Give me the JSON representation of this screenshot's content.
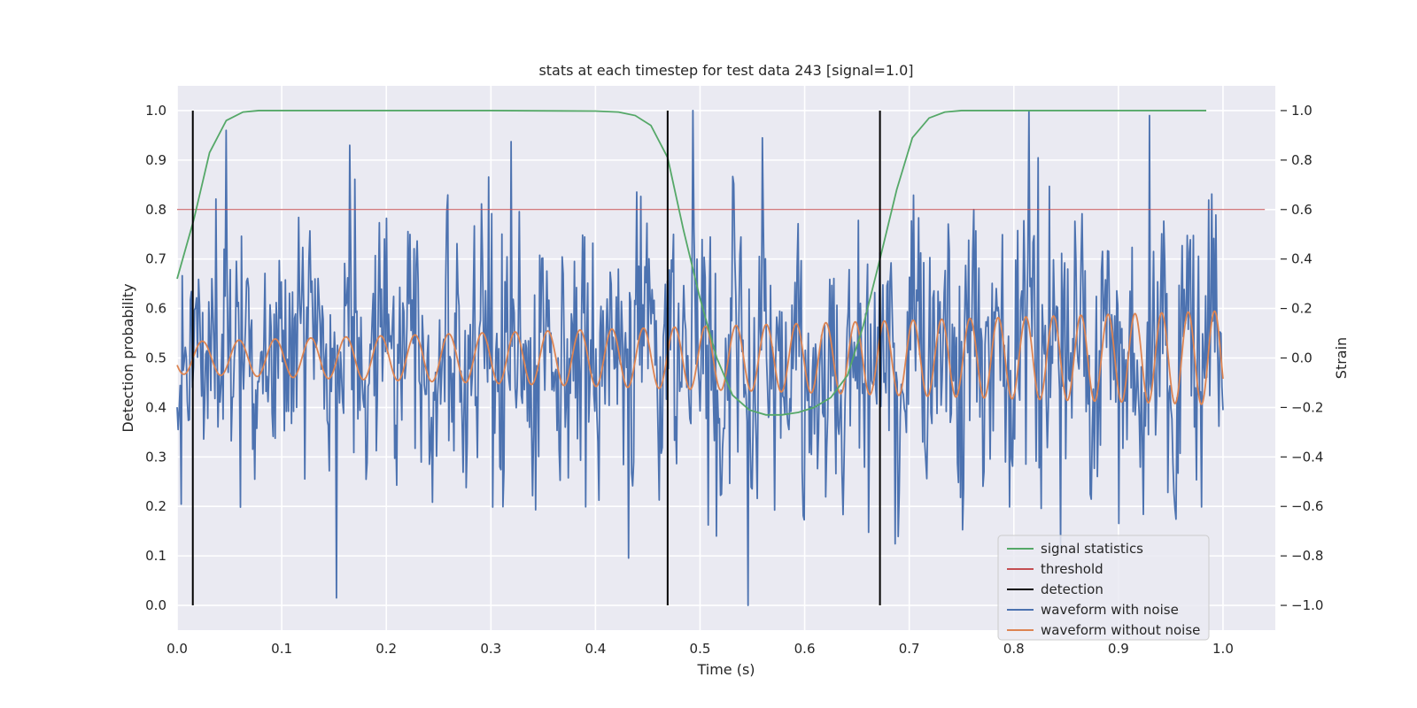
{
  "chart_data": {
    "type": "line",
    "title": "stats at each timestep for test data 243 [signal=1.0]",
    "xlabel": "Time (s)",
    "ylabel": "Detection probability",
    "y2label": "Strain",
    "xlim": [
      0.0,
      1.05
    ],
    "ylim": [
      -0.05,
      1.05
    ],
    "y2lim": [
      -1.1,
      1.1
    ],
    "x_ticks": [
      "0.0",
      "0.1",
      "0.2",
      "0.3",
      "0.4",
      "0.5",
      "0.6",
      "0.7",
      "0.8",
      "0.9",
      "1.0"
    ],
    "y_ticks": [
      "0.0",
      "0.1",
      "0.2",
      "0.3",
      "0.4",
      "0.5",
      "0.6",
      "0.7",
      "0.8",
      "0.9",
      "1.0"
    ],
    "y2_ticks": [
      "−1.0",
      "−0.8",
      "−0.6",
      "−0.4",
      "−0.2",
      "0.0",
      "0.2",
      "0.4",
      "0.6",
      "0.8",
      "1.0"
    ],
    "grid": true,
    "legend_position": "lower-right",
    "colors": {
      "signal_statistics": "#55a868",
      "threshold": "#c44e52",
      "detection": "#000000",
      "waveform_with_noise": "#4c72b0",
      "waveform_without_noise": "#dd8452",
      "plot_background": "#eaeaf2",
      "grid": "#ffffff"
    },
    "series": [
      {
        "name": "signal statistics",
        "axis": "left",
        "x": [
          0.0,
          0.016,
          0.031,
          0.047,
          0.063,
          0.078,
          0.1,
          0.2,
          0.3,
          0.4,
          0.422,
          0.438,
          0.453,
          0.469,
          0.484,
          0.5,
          0.516,
          0.531,
          0.547,
          0.563,
          0.578,
          0.594,
          0.609,
          0.625,
          0.641,
          0.656,
          0.672,
          0.688,
          0.703,
          0.719,
          0.734,
          0.75,
          0.8,
          0.9,
          0.984
        ],
        "y": [
          0.66,
          0.78,
          0.915,
          0.98,
          0.997,
          1.0,
          1.0,
          1.0,
          1.0,
          0.999,
          0.997,
          0.99,
          0.97,
          0.905,
          0.76,
          0.62,
          0.5,
          0.425,
          0.395,
          0.385,
          0.385,
          0.39,
          0.4,
          0.42,
          0.465,
          0.565,
          0.7,
          0.84,
          0.945,
          0.985,
          0.997,
          1.0,
          1.0,
          1.0,
          1.0
        ]
      },
      {
        "name": "threshold",
        "axis": "left",
        "x": [
          0.0,
          1.04
        ],
        "y": [
          0.8,
          0.8
        ]
      },
      {
        "name": "detection",
        "axis": "left",
        "vlines_x": [
          0.015,
          0.469,
          0.672
        ],
        "ymin": 0.0,
        "ymax": 1.0
      },
      {
        "name": "waveform with noise",
        "axis": "right",
        "sample_rate_hz": 1024,
        "x_start": 0.0,
        "x_end": 1.0,
        "approx_std": 0.27,
        "y_range": [
          -1.0,
          1.0
        ],
        "notable_points": [
          {
            "x": 0.047,
            "y": 0.92
          },
          {
            "x": 0.152,
            "y": -0.97
          },
          {
            "x": 0.165,
            "y": 0.86
          },
          {
            "x": 0.546,
            "y": -1.0
          },
          {
            "x": 0.814,
            "y": 1.0
          },
          {
            "x": 0.93,
            "y": 0.98
          }
        ]
      },
      {
        "name": "waveform without noise",
        "axis": "right",
        "model": "chirp",
        "x_start": 0.0,
        "x_end": 1.0,
        "amplitude_start": 0.065,
        "amplitude_end": 0.19,
        "frequency_start_hz": 28,
        "frequency_end_hz": 40
      }
    ]
  }
}
